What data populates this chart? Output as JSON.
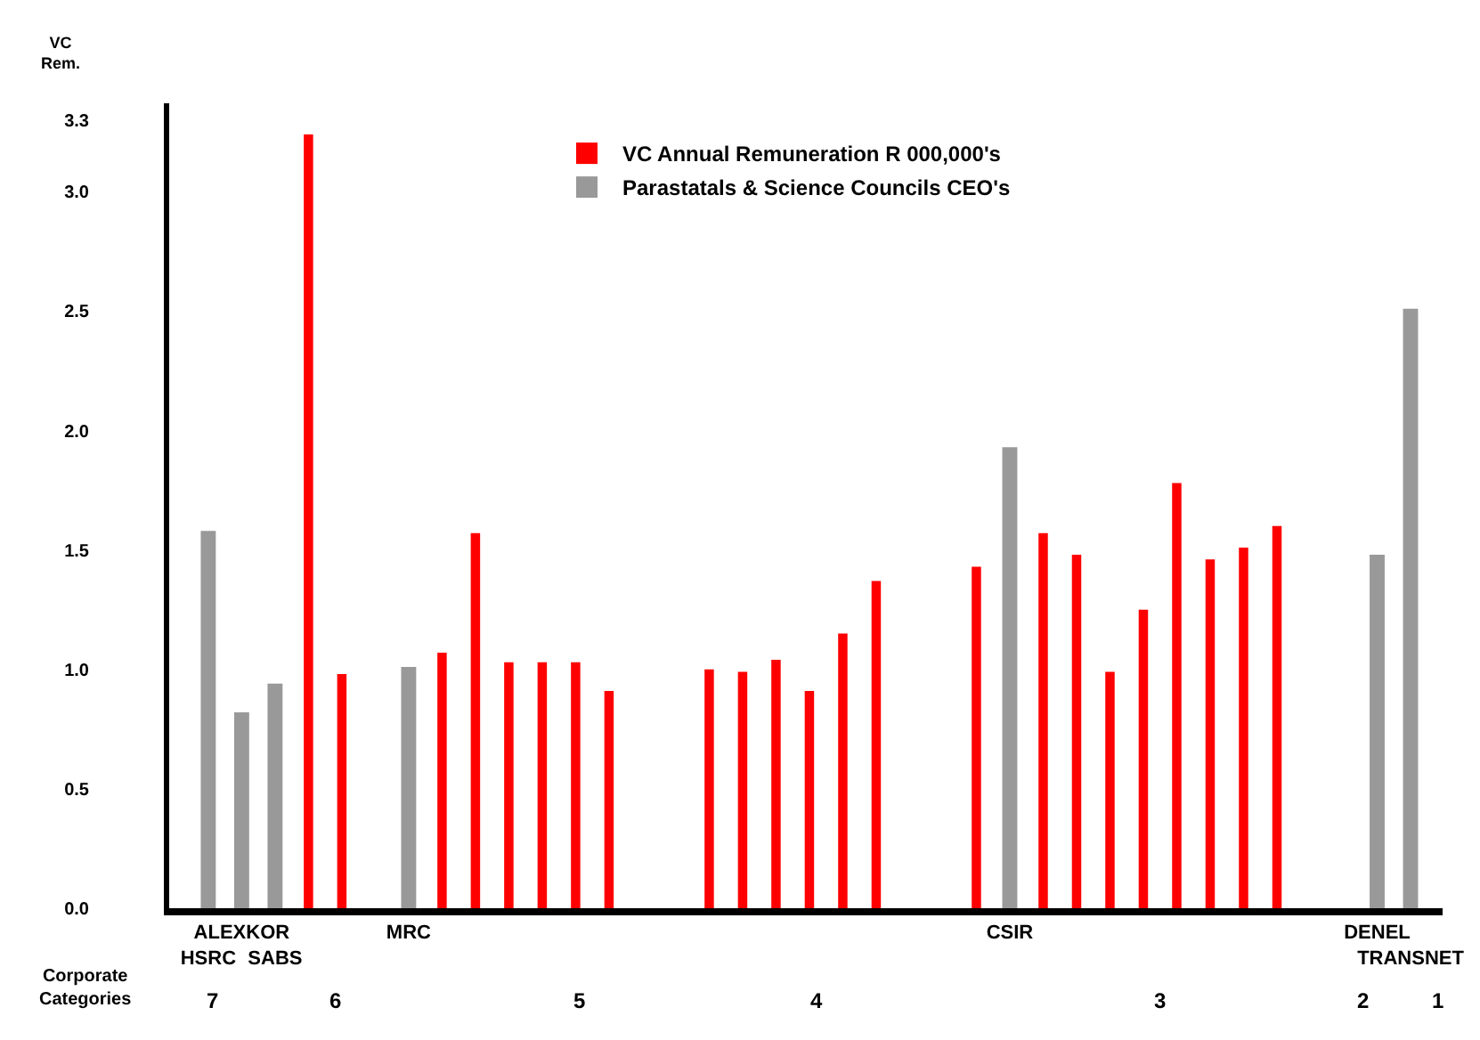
{
  "chart_data": {
    "type": "bar",
    "ylabel": "VC Rem.",
    "categories": [
      "HSRC",
      "ALEXKOR",
      "SABS",
      null,
      null,
      null,
      "MRC",
      null,
      null,
      null,
      null,
      null,
      null,
      null,
      null,
      null,
      null,
      null,
      null,
      null,
      null,
      null,
      null,
      null,
      "CSIR",
      null,
      null,
      null,
      null,
      null,
      null,
      null,
      null,
      null,
      null,
      "DENEL",
      "TRANSNET"
    ],
    "series": [
      {
        "name": "VC Annual Remuneration R 000,000's",
        "color": "#ff0000",
        "values": [
          null,
          null,
          null,
          3.24,
          0.98,
          null,
          null,
          1.07,
          1.57,
          1.03,
          1.03,
          1.03,
          0.91,
          null,
          null,
          1.0,
          0.99,
          1.04,
          0.91,
          1.15,
          1.37,
          null,
          null,
          1.43,
          null,
          1.57,
          1.48,
          0.99,
          1.25,
          1.78,
          1.46,
          1.51,
          1.6,
          null,
          null,
          null,
          null
        ]
      },
      {
        "name": "Parastatals & Science Councils CEO's",
        "color": "#999999",
        "values": [
          1.58,
          0.82,
          0.94,
          null,
          null,
          null,
          1.01,
          null,
          null,
          null,
          null,
          null,
          null,
          null,
          null,
          null,
          null,
          null,
          null,
          null,
          null,
          null,
          null,
          null,
          1.93,
          null,
          null,
          null,
          null,
          null,
          null,
          null,
          null,
          null,
          null,
          1.48,
          2.51
        ]
      }
    ],
    "ylim": [
      0,
      3.37
    ],
    "yticks": [
      {
        "value": 0,
        "label": "0.0"
      },
      {
        "value": 0.5,
        "label": "0.5"
      },
      {
        "value": 1,
        "label": "1.0"
      },
      {
        "value": 1.5,
        "label": "1.5"
      },
      {
        "value": 2,
        "label": "2.0"
      },
      {
        "value": 2.5,
        "label": "2.5"
      },
      {
        "value": 3,
        "label": "3.0"
      },
      {
        "value": 3.3,
        "label": "3.3"
      }
    ],
    "annotations": [
      "Corporate Categories",
      "7",
      "6",
      "5",
      "4",
      "3",
      "2",
      "1"
    ],
    "legend": "top",
    "grid": false
  }
}
